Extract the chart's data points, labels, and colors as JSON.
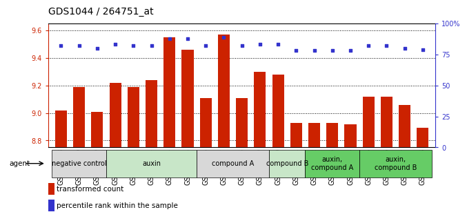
{
  "title": "GDS1044 / 264751_at",
  "samples": [
    "GSM25858",
    "GSM25859",
    "GSM25860",
    "GSM25861",
    "GSM25862",
    "GSM25863",
    "GSM25864",
    "GSM25865",
    "GSM25866",
    "GSM25867",
    "GSM25868",
    "GSM25869",
    "GSM25870",
    "GSM25871",
    "GSM25872",
    "GSM25873",
    "GSM25874",
    "GSM25875",
    "GSM25876",
    "GSM25877",
    "GSM25878"
  ],
  "bar_values": [
    9.02,
    9.19,
    9.01,
    9.22,
    9.19,
    9.24,
    9.55,
    9.46,
    9.11,
    9.57,
    9.11,
    9.3,
    9.28,
    8.93,
    8.93,
    8.93,
    8.92,
    9.12,
    9.12,
    9.06,
    8.89
  ],
  "percentile_values": [
    82,
    82,
    80,
    83,
    82,
    82,
    88,
    88,
    82,
    89,
    82,
    83,
    83,
    78,
    78,
    78,
    78,
    82,
    82,
    80,
    79
  ],
  "ylim_left": [
    8.75,
    9.65
  ],
  "ylim_right": [
    0,
    100
  ],
  "yticks_left": [
    8.8,
    9.0,
    9.2,
    9.4,
    9.6
  ],
  "yticks_right": [
    0,
    25,
    50,
    75,
    100
  ],
  "bar_color": "#cc2200",
  "dot_color": "#3333cc",
  "groups": [
    {
      "label": "negative control",
      "start": 0,
      "end": 3,
      "color": "#d8d8d8"
    },
    {
      "label": "auxin",
      "start": 3,
      "end": 8,
      "color": "#c8e6c8"
    },
    {
      "label": "compound A",
      "start": 8,
      "end": 12,
      "color": "#d8d8d8"
    },
    {
      "label": "compound B",
      "start": 12,
      "end": 14,
      "color": "#c8e6c8"
    },
    {
      "label": "auxin,\ncompound A",
      "start": 14,
      "end": 17,
      "color": "#66cc66"
    },
    {
      "label": "auxin,\ncompound B",
      "start": 17,
      "end": 21,
      "color": "#66cc66"
    }
  ],
  "agent_label": "agent",
  "legend_red": "transformed count",
  "legend_blue": "percentile rank within the sample",
  "background_color": "#ffffff",
  "title_fontsize": 10,
  "tick_fontsize": 7,
  "group_fontsize": 7,
  "legend_fontsize": 7.5
}
